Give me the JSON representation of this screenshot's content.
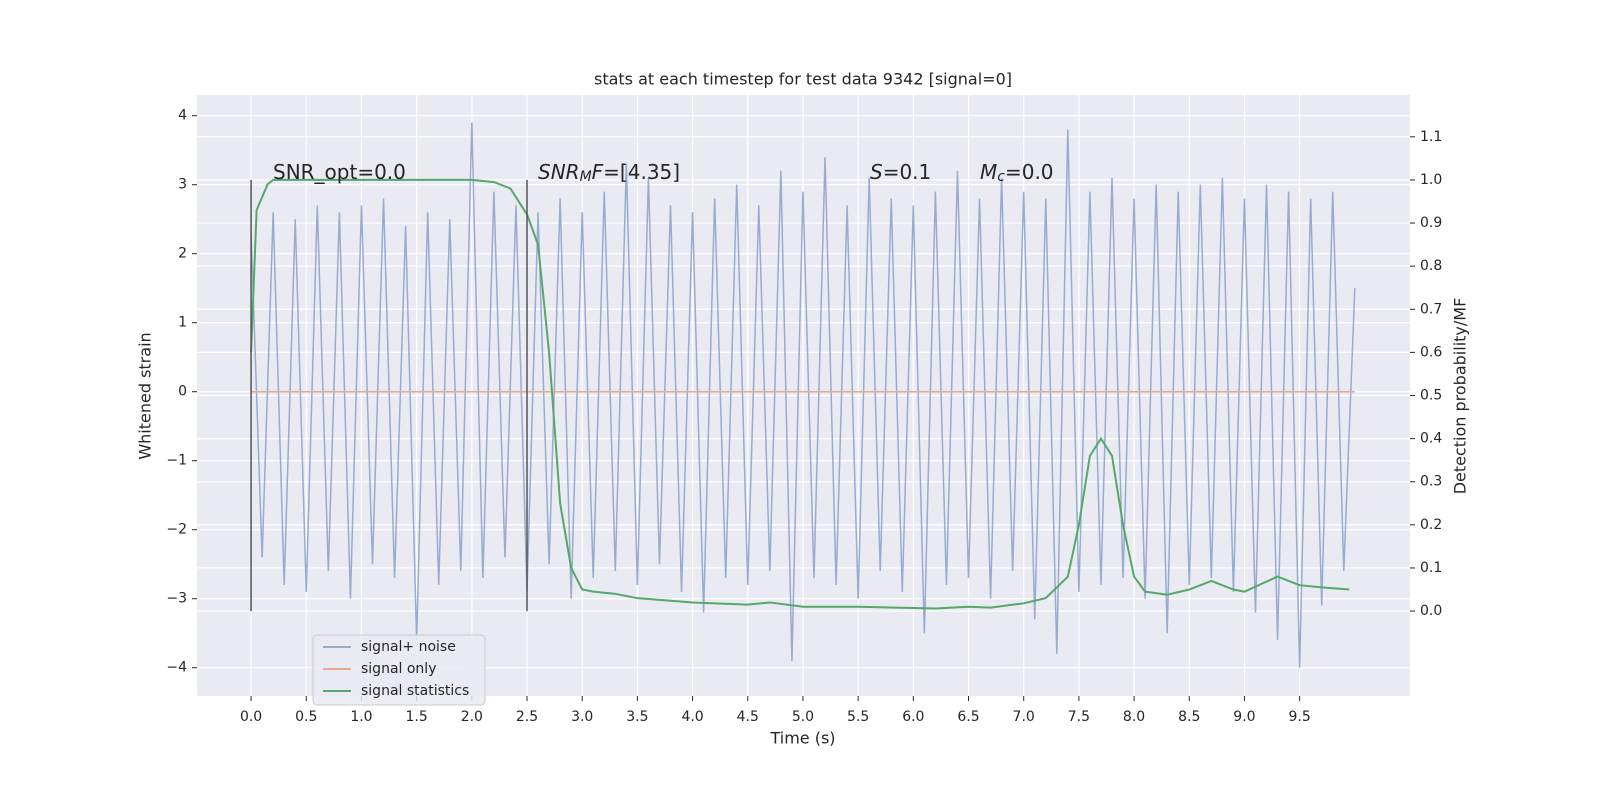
{
  "chart_data": {
    "type": "line",
    "title": "stats at each timestep for test data 9342 [signal=0]",
    "xlabel": "Time (s)",
    "ylabel": "Whitened strain",
    "y2label": "Detection probability/MF",
    "xlim": [
      -0.49,
      10.5
    ],
    "ylim": [
      -4.41,
      4.3
    ],
    "y2lim": [
      -0.197,
      1.197
    ],
    "xticks": [
      {
        "value": 0,
        "label": "0.0"
      },
      {
        "value": 0.5,
        "label": "0.5"
      },
      {
        "value": 1,
        "label": "1.0"
      },
      {
        "value": 1.5,
        "label": "1.5"
      },
      {
        "value": 2,
        "label": "2.0"
      },
      {
        "value": 2.5,
        "label": "2.5"
      },
      {
        "value": 3,
        "label": "3.0"
      },
      {
        "value": 3.5,
        "label": "3.5"
      },
      {
        "value": 4,
        "label": "4.0"
      },
      {
        "value": 4.5,
        "label": "4.5"
      },
      {
        "value": 5,
        "label": "5.0"
      },
      {
        "value": 5.5,
        "label": "5.5"
      },
      {
        "value": 6,
        "label": "6.0"
      },
      {
        "value": 6.5,
        "label": "6.5"
      },
      {
        "value": 7,
        "label": "7.0"
      },
      {
        "value": 7.5,
        "label": "7.5"
      },
      {
        "value": 8,
        "label": "8.0"
      },
      {
        "value": 8.5,
        "label": "8.5"
      },
      {
        "value": 9,
        "label": "9.0"
      },
      {
        "value": 9.5,
        "label": "9.5"
      }
    ],
    "yticks": [
      {
        "value": -4,
        "label": "−4"
      },
      {
        "value": -3,
        "label": "−3"
      },
      {
        "value": -2,
        "label": "−2"
      },
      {
        "value": -1,
        "label": "−1"
      },
      0,
      1,
      2,
      3,
      4
    ],
    "y2ticks": [
      {
        "value": 0,
        "label": "0.0"
      },
      {
        "value": 0.1,
        "label": "0.1"
      },
      {
        "value": 0.2,
        "label": "0.2"
      },
      {
        "value": 0.3,
        "label": "0.3"
      },
      {
        "value": 0.4,
        "label": "0.4"
      },
      {
        "value": 0.5,
        "label": "0.5"
      },
      {
        "value": 0.6,
        "label": "0.6"
      },
      {
        "value": 0.7,
        "label": "0.7"
      },
      {
        "value": 0.8,
        "label": "0.8"
      },
      {
        "value": 0.9,
        "label": "0.9"
      },
      {
        "value": 1,
        "label": "1.0"
      },
      {
        "value": 1.1,
        "label": "1.1"
      }
    ],
    "grid": true,
    "legend": "lower left",
    "series": [
      {
        "name": "signal+ noise",
        "color": "#98abd1",
        "x": [
          0,
          0.1,
          0.2,
          0.3,
          0.4,
          0.5,
          0.6,
          0.7,
          0.8,
          0.9,
          1,
          1.1,
          1.2,
          1.3,
          1.4,
          1.5,
          1.6,
          1.7,
          1.8,
          1.9,
          2,
          2.1,
          2.2,
          2.3,
          2.4,
          2.5,
          2.6,
          2.7,
          2.8,
          2.9,
          3,
          3.1,
          3.2,
          3.3,
          3.4,
          3.5,
          3.6,
          3.7,
          3.8,
          3.9,
          4,
          4.1,
          4.2,
          4.3,
          4.4,
          4.5,
          4.6,
          4.7,
          4.8,
          4.9,
          5,
          5.1,
          5.2,
          5.3,
          5.4,
          5.5,
          5.6,
          5.7,
          5.8,
          5.9,
          6,
          6.1,
          6.2,
          6.3,
          6.4,
          6.5,
          6.6,
          6.7,
          6.8,
          6.9,
          7,
          7.1,
          7.2,
          7.3,
          7.4,
          7.5,
          7.6,
          7.7,
          7.8,
          7.9,
          8,
          8.1,
          8.2,
          8.3,
          8.4,
          8.5,
          8.6,
          8.7,
          8.8,
          8.9,
          9,
          9.1,
          9.2,
          9.3,
          9.4,
          9.5,
          9.6,
          9.7,
          9.8,
          9.9,
          10
        ],
        "values": [
          2.3,
          -2.4,
          2.6,
          -2.8,
          2.5,
          -2.9,
          2.7,
          -2.6,
          2.6,
          -3.0,
          2.7,
          -2.5,
          2.8,
          -2.7,
          2.4,
          -3.6,
          2.6,
          -2.8,
          2.5,
          -2.6,
          3.9,
          -2.7,
          2.9,
          -2.4,
          2.7,
          -2.9,
          2.6,
          -2.5,
          2.8,
          -3.0,
          2.6,
          -2.7,
          2.9,
          -2.6,
          3.3,
          -2.8,
          3.1,
          -2.5,
          2.7,
          -2.9,
          2.6,
          -3.2,
          2.8,
          -2.7,
          3.0,
          -2.8,
          2.7,
          -2.6,
          3.2,
          -3.9,
          2.9,
          -2.7,
          3.4,
          -2.8,
          2.7,
          -3.0,
          3.1,
          -2.6,
          2.8,
          -2.9,
          2.7,
          -3.5,
          2.9,
          -2.8,
          3.2,
          -2.7,
          2.8,
          -3.0,
          3.1,
          -2.6,
          2.9,
          -3.3,
          2.8,
          -3.8,
          3.8,
          -2.9,
          2.9,
          -2.8,
          3.1,
          -2.7,
          2.8,
          -3.0,
          3.0,
          -3.5,
          2.9,
          -2.8,
          3.0,
          -2.7,
          3.1,
          -2.9,
          2.8,
          -3.2,
          3.0,
          -3.6,
          2.9,
          -4.0,
          2.8,
          -3.1,
          2.9,
          -2.6,
          1.5
        ]
      },
      {
        "name": "signal only",
        "color": "#e8a98c",
        "x": [
          0,
          10
        ],
        "values": [
          0,
          0
        ]
      },
      {
        "name": "signal statistics",
        "color": "#55a868",
        "axis": "y2",
        "x": [
          0,
          0.05,
          0.15,
          0.2,
          1,
          2,
          2.2,
          2.35,
          2.5,
          2.6,
          2.7,
          2.8,
          2.9,
          3,
          3.1,
          3.3,
          3.5,
          4,
          4.5,
          4.7,
          5,
          5.5,
          6,
          6.2,
          6.5,
          6.7,
          7,
          7.2,
          7.4,
          7.5,
          7.6,
          7.7,
          7.8,
          7.9,
          8,
          8.1,
          8.3,
          8.5,
          8.7,
          8.9,
          9,
          9.3,
          9.5,
          9.7,
          9.95
        ],
        "values": [
          0.6,
          0.93,
          0.99,
          1,
          1,
          1,
          0.995,
          0.98,
          0.92,
          0.85,
          0.6,
          0.25,
          0.1,
          0.05,
          0.045,
          0.04,
          0.03,
          0.02,
          0.015,
          0.02,
          0.01,
          0.01,
          0.007,
          0.006,
          0.01,
          0.008,
          0.018,
          0.03,
          0.08,
          0.2,
          0.36,
          0.4,
          0.36,
          0.2,
          0.08,
          0.045,
          0.038,
          0.05,
          0.07,
          0.05,
          0.045,
          0.08,
          0.06,
          0.055,
          0.05
        ]
      }
    ],
    "vlines": {
      "x": [
        0,
        2.5
      ],
      "ymin": 0,
      "ymax": 1,
      "axis": "y2",
      "color": "#555555"
    },
    "annotations": [
      [
        {
          "t": "SNR_opt=0.0"
        }
      ],
      [
        {
          "t": "SNR",
          "i": true
        },
        {
          "t": "M",
          "sub": true
        },
        {
          "t": "F",
          "i": true
        },
        {
          "t": "=[4.35]"
        }
      ],
      [
        {
          "t": "S",
          "i": true
        },
        {
          "t": "=0.1"
        }
      ],
      [
        {
          "t": "M",
          "i": true
        },
        {
          "t": "c",
          "sub": true
        },
        {
          "t": "=0.0"
        }
      ]
    ]
  }
}
